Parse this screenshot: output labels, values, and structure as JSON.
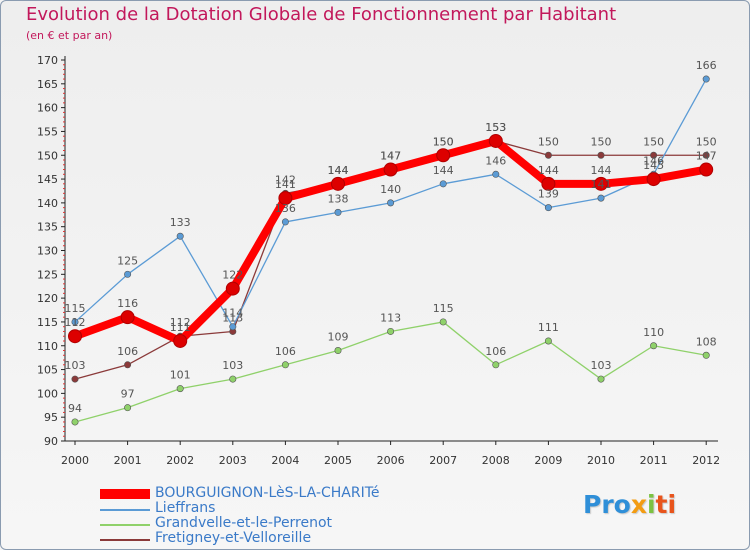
{
  "header": {
    "title": "Evolution de la Dotation Globale de Fonctionnement par Habitant",
    "subtitle": "(en € et par an)"
  },
  "logo": {
    "text": "Proxiti",
    "parts": [
      "Pro",
      "x",
      "i",
      "ti"
    ]
  },
  "chart_data": {
    "type": "line",
    "title": "Evolution de la Dotation Globale de Fonctionnement par Habitant",
    "subtitle": "(en € et par an)",
    "xlabel": "",
    "ylabel": "",
    "ylim": [
      90,
      170
    ],
    "yticks": [
      90,
      95,
      100,
      105,
      110,
      115,
      120,
      125,
      130,
      135,
      140,
      145,
      150,
      155,
      160,
      165,
      170
    ],
    "categories": [
      "2000",
      "2001",
      "2002",
      "2003",
      "2004",
      "2005",
      "2006",
      "2007",
      "2008",
      "2009",
      "2010",
      "2011",
      "2012"
    ],
    "grid": false,
    "legend_position": "bottom-left",
    "series": [
      {
        "name": "BOURGUIGNON-LèS-LA-CHARITé",
        "color": "#ff0000",
        "emphasis": true,
        "values": [
          112,
          116,
          111,
          122,
          141,
          144,
          147,
          150,
          153,
          144,
          144,
          145,
          147
        ],
        "labels": [
          "112",
          "116",
          "111",
          "122",
          "141",
          "144",
          "147",
          "150",
          "153",
          "144",
          "144",
          "145",
          "147"
        ]
      },
      {
        "name": "Lieffrans",
        "color": "#5b9bd5",
        "emphasis": false,
        "values": [
          115,
          125,
          133,
          114,
          136,
          138,
          140,
          144,
          146,
          139,
          141,
          146,
          166
        ],
        "labels": [
          "115",
          "125",
          "133",
          "114",
          "136",
          "138",
          "140",
          "144",
          "146",
          "139",
          "141",
          "146",
          "166"
        ]
      },
      {
        "name": "Grandvelle-et-le-Perrenot",
        "color": "#8fd16a",
        "emphasis": false,
        "values": [
          94,
          97,
          101,
          103,
          106,
          109,
          113,
          115,
          106,
          111,
          103,
          110,
          108
        ],
        "labels": [
          "94",
          "97",
          "101",
          "103",
          "106",
          "109",
          "113",
          "115",
          "106",
          "111",
          "103",
          "110",
          "108"
        ]
      },
      {
        "name": "Fretigney-et-Velloreille",
        "color": "#8b3a3a",
        "emphasis": false,
        "values": [
          103,
          106,
          112,
          113,
          142,
          144,
          147,
          150,
          153,
          150,
          150,
          150,
          150
        ],
        "labels": [
          "103",
          "106",
          "112",
          "113",
          "142",
          "144",
          "147",
          "150",
          "153",
          "150",
          "150",
          "150",
          "150"
        ]
      }
    ]
  }
}
